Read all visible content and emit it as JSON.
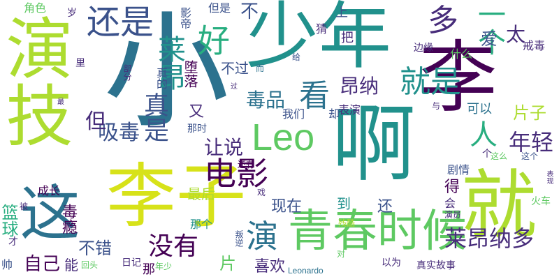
{
  "palette": {
    "purple_dark": "#440154",
    "purple": "#472c7a",
    "blue_dark": "#3b528b",
    "blue": "#2c728e",
    "teal_blue": "#21918c",
    "teal": "#28ae80",
    "green": "#5ec962",
    "lime": "#addc30",
    "yellow": "#d7e219"
  },
  "words": [
    {
      "text": "小",
      "color": "#2c728e"
    },
    {
      "text": "少年",
      "color": "#21918c"
    },
    {
      "text": "演技",
      "color": "#addc30"
    },
    {
      "text": "李",
      "color": "#440154"
    },
    {
      "text": "啊",
      "color": "#21918c"
    },
    {
      "text": "李子",
      "color": "#d7e219"
    },
    {
      "text": "就",
      "color": "#addc30"
    },
    {
      "text": "青春时候",
      "color": "#5ec962"
    },
    {
      "text": "这",
      "color": "#2c728e"
    },
    {
      "text": "Leo",
      "color": "#5ec962"
    },
    {
      "text": "电影",
      "color": "#440154"
    },
    {
      "text": "还是",
      "color": "#3b528b"
    },
    {
      "text": "好",
      "color": "#28ae80"
    },
    {
      "text": "多",
      "color": "#472c7a"
    },
    {
      "text": "一个",
      "color": "#28ae80"
    },
    {
      "text": "就是",
      "color": "#21918c"
    },
    {
      "text": "看",
      "color": "#2c728e"
    },
    {
      "text": "莱昂",
      "color": "#21918c"
    },
    {
      "text": "演",
      "color": "#2c728e"
    },
    {
      "text": "莱昂纳多",
      "color": "#472c7a"
    },
    {
      "text": "没有",
      "color": "#440154"
    },
    {
      "text": "真是",
      "color": "#3b528b"
    },
    {
      "text": "人",
      "color": "#28ae80"
    },
    {
      "text": "年轻",
      "color": "#472c7a"
    },
    {
      "text": "毒品",
      "color": "#2c728e"
    },
    {
      "text": "吸毒",
      "color": "#3b528b"
    },
    {
      "text": "昂纳",
      "color": "#472c7a"
    },
    {
      "text": "让说",
      "color": "#472c7a"
    },
    {
      "text": "太",
      "color": "#472c7a"
    },
    {
      "text": "爱",
      "color": "#3b528b"
    },
    {
      "text": "但",
      "color": "#472c7a"
    },
    {
      "text": "不错",
      "color": "#3b528b"
    },
    {
      "text": "自己",
      "color": "#440154"
    },
    {
      "text": "喜欢",
      "color": "#472c7a"
    },
    {
      "text": "篮球",
      "color": "#28ae80"
    },
    {
      "text": "现在",
      "color": "#3b528b"
    },
    {
      "text": "最后",
      "color": "#addc30"
    },
    {
      "text": "片子",
      "color": "#addc30"
    },
    {
      "text": "得",
      "color": "#440154"
    },
    {
      "text": "还",
      "color": "#3b528b"
    },
    {
      "text": "到",
      "color": "#21918c"
    },
    {
      "text": "不",
      "color": "#3b528b"
    },
    {
      "text": "又",
      "color": "#472c7a"
    },
    {
      "text": "片",
      "color": "#5ec962"
    },
    {
      "text": "毒瘾",
      "color": "#440154"
    },
    {
      "text": "堕落",
      "color": "#440154"
    },
    {
      "text": "不过",
      "color": "#3b528b"
    },
    {
      "text": "我们",
      "color": "#3b528b"
    },
    {
      "text": "表演",
      "color": "#472c7a"
    },
    {
      "text": "却",
      "color": "#3b528b"
    },
    {
      "text": "能",
      "color": "#472c7a"
    },
    {
      "text": "可以",
      "color": "#2c728e"
    },
    {
      "text": "剧情",
      "color": "#3b528b"
    },
    {
      "text": "那个",
      "color": "#21918c"
    },
    {
      "text": "会",
      "color": "#472c7a"
    },
    {
      "text": "成长",
      "color": "#440154"
    },
    {
      "text": "戒毒",
      "color": "#472c7a"
    },
    {
      "text": "什么",
      "color": "#5ec962"
    },
    {
      "text": "上",
      "color": "#3b528b"
    },
    {
      "text": "把",
      "color": "#472c7a"
    },
    {
      "text": "角色",
      "color": "#5ec962"
    },
    {
      "text": "但是",
      "color": "#3b528b"
    },
    {
      "text": "影帝",
      "color": "#3b528b"
    },
    {
      "text": "猜",
      "color": "#472c7a"
    },
    {
      "text": "岁",
      "color": "#472c7a"
    },
    {
      "text": "给",
      "color": "#3b528b"
    },
    {
      "text": "而",
      "color": "#2c728e"
    },
    {
      "text": "里",
      "color": "#472c7a"
    },
    {
      "text": "边缘",
      "color": "#472c7a"
    },
    {
      "text": "那时",
      "color": "#3b528b"
    },
    {
      "text": "与",
      "color": "#472c7a"
    },
    {
      "text": "个",
      "color": "#472c7a"
    },
    {
      "text": "这么",
      "color": "#5ec962"
    },
    {
      "text": "这个",
      "color": "#3b528b"
    },
    {
      "text": "火车",
      "color": "#5ec962"
    },
    {
      "text": "以为",
      "color": "#472c7a"
    },
    {
      "text": "真实故事",
      "color": "#472c7a"
    },
    {
      "text": "演员",
      "color": "#472c7a"
    },
    {
      "text": "残酷",
      "color": "#addc30"
    },
    {
      "text": "对",
      "color": "#5ec962"
    },
    {
      "text": "Leonardo",
      "color": "#2c728e"
    },
    {
      "text": "年少",
      "color": "#5ec962"
    },
    {
      "text": "日记",
      "color": "#472c7a"
    },
    {
      "text": "那",
      "color": "#440154"
    },
    {
      "text": "回头",
      "color": "#5ec962"
    },
    {
      "text": "帅",
      "color": "#3b528b"
    },
    {
      "text": "才",
      "color": "#472c7a"
    },
    {
      "text": "叛逆",
      "color": "#3b528b"
    },
    {
      "text": "还有",
      "color": "#440154"
    },
    {
      "text": "戏",
      "color": "#472c7a"
    },
    {
      "text": "被",
      "color": "#472c7a"
    },
    {
      "text": "部分",
      "color": "#472c7a"
    },
    {
      "text": "过",
      "color": "#472c7a"
    },
    {
      "text": "最",
      "color": "#472c7a"
    },
    {
      "text": "真的",
      "color": "#3b528b"
    },
    {
      "text": "表现",
      "color": "#472c7a"
    }
  ]
}
